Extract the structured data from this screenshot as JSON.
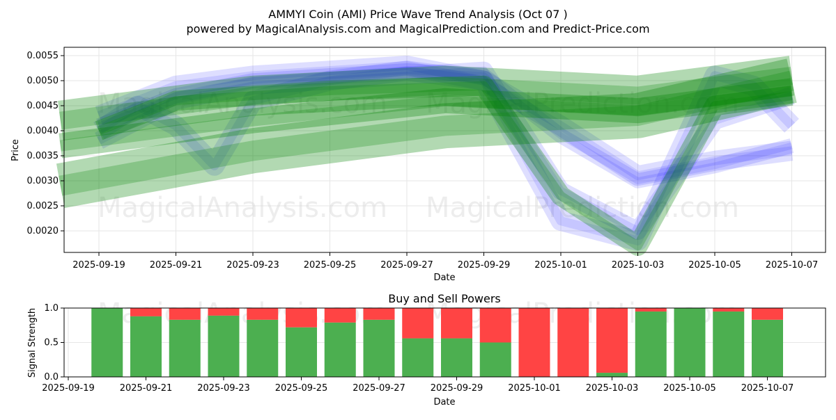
{
  "header": {
    "title": "AMMYI Coin (AMI) Price Wave Trend Analysis (Oct 07 )",
    "subtitle": "powered by MagicalAnalysis.com and MagicalPrediction.com and Predict-Price.com"
  },
  "watermarks": {
    "top_row": [
      "MagicalAnalysis.com",
      "MagicalPrediction.com"
    ],
    "middle_row": [
      "MagicalAnalysis.com",
      "MagicalPrediction.com"
    ],
    "bottom_row": [
      "MagicalAnalysis.com",
      "MagicalPrediction.com"
    ]
  },
  "colors": {
    "blue_band": "#0000ff",
    "green_band": "#008000",
    "buy": "#4caf50",
    "sell": "#ff4444",
    "grid": "#e6e6e6"
  },
  "chart_data": [
    {
      "type": "area",
      "title": "",
      "xlabel": "Date",
      "ylabel": "Price",
      "ylim": [
        0.00155,
        0.0057
      ],
      "xlim": [
        "2025-09-18",
        "2025-10-08"
      ],
      "y_ticks": [
        "0.0020",
        "0.0025",
        "0.0030",
        "0.0035",
        "0.0040",
        "0.0045",
        "0.0050",
        "0.0055"
      ],
      "x_ticks": [
        "2025-09-19",
        "2025-09-21",
        "2025-09-23",
        "2025-09-25",
        "2025-09-27",
        "2025-09-29",
        "2025-10-01",
        "2025-10-03",
        "2025-10-05",
        "2025-10-07"
      ],
      "grid": true,
      "series": [
        {
          "color": "blue",
          "x": [
            "2025-09-19",
            "2025-09-21",
            "2025-09-23",
            "2025-09-25",
            "2025-09-27",
            "2025-09-29",
            "2025-10-01",
            "2025-10-03",
            "2025-10-05",
            "2025-10-07"
          ],
          "values": [
            0.0041,
            0.0047,
            0.005,
            0.0051,
            0.0052,
            0.0051,
            0.0039,
            0.003,
            0.0033,
            0.0037
          ],
          "halfwidth": 0.00015
        },
        {
          "color": "blue",
          "x": [
            "2025-09-19",
            "2025-09-21",
            "2025-09-23",
            "2025-09-25",
            "2025-09-27",
            "2025-09-29",
            "2025-10-01",
            "2025-10-03",
            "2025-10-05",
            "2025-10-07"
          ],
          "values": [
            0.0043,
            0.0049,
            0.0051,
            0.0052,
            0.0053,
            0.005,
            0.0041,
            0.0031,
            0.0034,
            0.0036
          ],
          "halfwidth": 0.0002
        },
        {
          "color": "blue",
          "x": [
            "2025-09-19",
            "2025-09-20",
            "2025-09-21",
            "2025-09-22",
            "2025-09-23",
            "2025-09-25",
            "2025-09-27",
            "2025-09-29",
            "2025-10-01",
            "2025-10-03",
            "2025-10-05",
            "2025-10-06",
            "2025-10-07"
          ],
          "values": [
            0.004,
            0.0045,
            0.0041,
            0.0033,
            0.0046,
            0.005,
            0.0052,
            0.005,
            0.0022,
            0.0018,
            0.0051,
            0.0049,
            0.0041
          ],
          "halfwidth": 0.0002
        },
        {
          "color": "blue",
          "x": [
            "2025-09-19",
            "2025-09-21",
            "2025-09-23",
            "2025-09-25",
            "2025-09-27",
            "2025-09-29",
            "2025-10-01",
            "2025-10-03",
            "2025-10-05",
            "2025-10-07"
          ],
          "values": [
            0.0038,
            0.0046,
            0.0049,
            0.005,
            0.0051,
            0.0052,
            0.0028,
            0.002,
            0.0042,
            0.0047
          ],
          "halfwidth": 0.00018
        },
        {
          "color": "green",
          "x": [
            "2025-09-18",
            "2025-09-23",
            "2025-09-28",
            "2025-10-03",
            "2025-10-07"
          ],
          "values": [
            0.0029,
            0.0036,
            0.0041,
            0.0043,
            0.005
          ],
          "halfwidth": 0.00045
        },
        {
          "color": "green",
          "x": [
            "2025-09-18",
            "2025-09-23",
            "2025-09-28",
            "2025-10-03",
            "2025-10-07"
          ],
          "values": [
            0.0037,
            0.0042,
            0.0046,
            0.0044,
            0.0048
          ],
          "halfwidth": 0.00025
        },
        {
          "color": "green",
          "x": [
            "2025-09-18",
            "2025-09-23",
            "2025-09-28",
            "2025-10-03",
            "2025-10-07"
          ],
          "values": [
            0.0042,
            0.0047,
            0.0049,
            0.0047,
            0.0051
          ],
          "halfwidth": 0.0004
        },
        {
          "color": "green",
          "x": [
            "2025-09-19",
            "2025-09-21",
            "2025-09-25",
            "2025-09-29",
            "2025-10-01",
            "2025-10-03",
            "2025-10-05",
            "2025-10-07"
          ],
          "values": [
            0.004,
            0.0046,
            0.0048,
            0.0049,
            0.0027,
            0.0017,
            0.0045,
            0.0047
          ],
          "halfwidth": 0.0002
        }
      ]
    },
    {
      "type": "bar",
      "title": "Buy and Sell Powers",
      "xlabel": "Date",
      "ylabel": "Signal Strength",
      "ylim": [
        0,
        1
      ],
      "y_ticks": [
        "0.0",
        "0.5",
        "1.0"
      ],
      "x_ticks": [
        "2025-09-19",
        "2025-09-21",
        "2025-09-23",
        "2025-09-25",
        "2025-09-27",
        "2025-09-29",
        "2025-10-01",
        "2025-10-03",
        "2025-10-05",
        "2025-10-07"
      ],
      "categories": [
        "2025-09-20",
        "2025-09-21",
        "2025-09-22",
        "2025-09-23",
        "2025-09-24",
        "2025-09-25",
        "2025-09-26",
        "2025-09-27",
        "2025-09-28",
        "2025-09-29",
        "2025-09-30",
        "2025-10-01",
        "2025-10-02",
        "2025-10-03",
        "2025-10-04",
        "2025-10-05",
        "2025-10-06",
        "2025-10-07"
      ],
      "series": [
        {
          "name": "Buy",
          "values": [
            1.0,
            0.88,
            0.83,
            0.89,
            0.83,
            0.72,
            0.79,
            0.83,
            0.56,
            0.56,
            0.5,
            0.0,
            0.0,
            0.06,
            0.95,
            1.0,
            0.95,
            0.83
          ]
        },
        {
          "name": "Sell",
          "values": [
            0.0,
            0.12,
            0.17,
            0.11,
            0.17,
            0.28,
            0.21,
            0.17,
            0.44,
            0.44,
            0.5,
            1.0,
            1.0,
            0.94,
            0.05,
            0.0,
            0.05,
            0.17
          ]
        }
      ]
    }
  ]
}
